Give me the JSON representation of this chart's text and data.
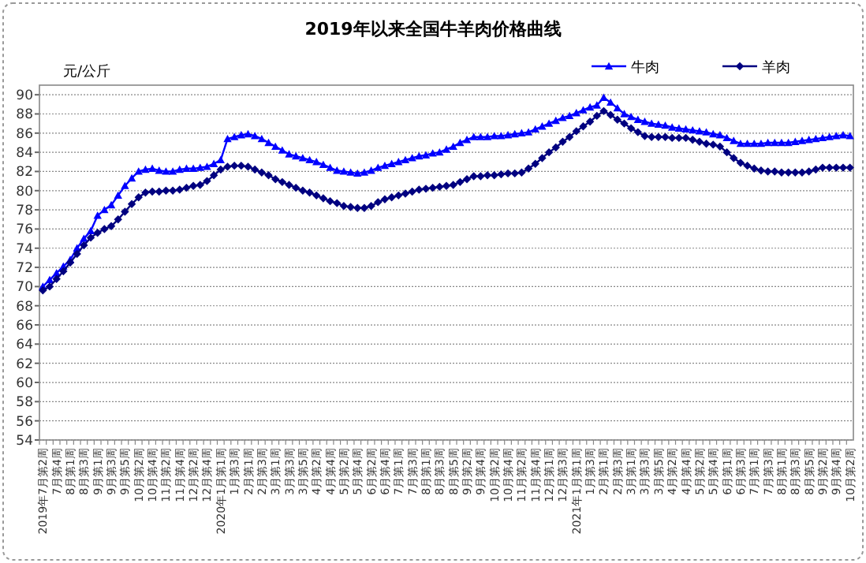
{
  "chart_data": {
    "type": "line",
    "title": "2019年以来全国牛羊肉价格曲线",
    "ylabel": "元/公斤",
    "categories": [
      "2019年7月第2周",
      null,
      "7月第4周",
      null,
      "8月第1周",
      null,
      "8月第3周",
      null,
      "9月第1周",
      null,
      "9月第3周",
      null,
      "9月第5周",
      null,
      "10月第2周",
      null,
      "10月第4周",
      null,
      "11月第2周",
      null,
      "11月第4周",
      null,
      "12月第2周",
      null,
      "12月第4周",
      null,
      "2020年1月第1周",
      null,
      "1月第3周",
      null,
      "2月第1周",
      null,
      "2月第3周",
      null,
      "3月第1周",
      null,
      "3月第3周",
      null,
      "3月第5周",
      null,
      "4月第2周",
      null,
      "4月第4周",
      null,
      "5月第2周",
      null,
      "5月第4周",
      null,
      "6月第2周",
      null,
      "6月第4周",
      null,
      "7月第1周",
      null,
      "7月第3周",
      null,
      "8月第1周",
      null,
      "8月第3周",
      null,
      "8月第5周",
      null,
      "9月第2周",
      null,
      "9月第4周",
      null,
      "10月第2周",
      null,
      "10月第4周",
      null,
      "11月第2周",
      null,
      "11月第4周",
      null,
      "12月第1周",
      null,
      "12月第3周",
      null,
      "2021年1月第1周",
      null,
      "1月第3周",
      null,
      "2月第1周",
      null,
      "2月第3周",
      null,
      "3月第1周",
      null,
      "3月第3周",
      null,
      "3月第5周",
      null,
      "4月第2周",
      null,
      "4月第4周",
      null,
      "5月第2周",
      null,
      "5月第4周",
      null,
      "6月第1周",
      null,
      "6月第3周",
      null,
      "7月第1周",
      null,
      "7月第3周",
      null,
      "8月第1周",
      null,
      "8月第3周",
      null,
      "8月第5周",
      null,
      "9月第2周",
      null,
      "9月第4周",
      null,
      "10月第2周"
    ],
    "series": [
      {
        "name": "牛肉",
        "color": "#0000ff",
        "marker": "triangle",
        "values": [
          70.0,
          70.7,
          71.4,
          72.1,
          72.8,
          74.0,
          75.0,
          75.8,
          77.4,
          78.0,
          78.5,
          79.5,
          80.5,
          81.3,
          82.0,
          82.2,
          82.3,
          82.1,
          82.0,
          82.0,
          82.2,
          82.3,
          82.3,
          82.4,
          82.5,
          82.8,
          83.2,
          85.4,
          85.6,
          85.8,
          85.9,
          85.7,
          85.4,
          85.0,
          84.6,
          84.2,
          83.8,
          83.6,
          83.4,
          83.2,
          83.0,
          82.7,
          82.4,
          82.1,
          82.0,
          81.9,
          81.8,
          81.9,
          82.1,
          82.4,
          82.6,
          82.8,
          83.0,
          83.2,
          83.4,
          83.6,
          83.7,
          83.9,
          84.0,
          84.3,
          84.6,
          85.0,
          85.3,
          85.6,
          85.6,
          85.6,
          85.7,
          85.7,
          85.8,
          85.9,
          86.0,
          86.1,
          86.4,
          86.7,
          87.0,
          87.3,
          87.6,
          87.8,
          88.1,
          88.4,
          88.7,
          88.9,
          89.7,
          89.2,
          88.6,
          88.0,
          87.7,
          87.4,
          87.2,
          87.0,
          86.9,
          86.8,
          86.6,
          86.5,
          86.4,
          86.3,
          86.2,
          86.1,
          85.9,
          85.8,
          85.5,
          85.2,
          84.9,
          84.9,
          84.9,
          84.9,
          85.0,
          85.0,
          85.0,
          85.0,
          85.1,
          85.2,
          85.3,
          85.4,
          85.5,
          85.6,
          85.7,
          85.8,
          85.7
        ]
      },
      {
        "name": "羊肉",
        "color": "#000080",
        "marker": "diamond",
        "values": [
          69.6,
          70.0,
          70.8,
          71.6,
          72.5,
          73.4,
          74.3,
          75.1,
          75.6,
          76.0,
          76.3,
          77.0,
          77.8,
          78.6,
          79.3,
          79.8,
          79.9,
          79.9,
          80.0,
          80.0,
          80.1,
          80.3,
          80.5,
          80.6,
          81.0,
          81.6,
          82.2,
          82.5,
          82.6,
          82.6,
          82.5,
          82.2,
          81.9,
          81.6,
          81.2,
          80.9,
          80.6,
          80.3,
          80.0,
          79.8,
          79.5,
          79.2,
          78.9,
          78.7,
          78.4,
          78.3,
          78.2,
          78.2,
          78.4,
          78.8,
          79.1,
          79.3,
          79.5,
          79.7,
          79.9,
          80.1,
          80.2,
          80.3,
          80.4,
          80.5,
          80.6,
          80.9,
          81.2,
          81.5,
          81.5,
          81.6,
          81.6,
          81.7,
          81.8,
          81.8,
          81.9,
          82.3,
          82.8,
          83.4,
          84.0,
          84.5,
          85.1,
          85.6,
          86.2,
          86.7,
          87.2,
          87.8,
          88.3,
          87.9,
          87.4,
          87.0,
          86.5,
          86.1,
          85.7,
          85.6,
          85.6,
          85.6,
          85.5,
          85.5,
          85.5,
          85.3,
          85.1,
          84.9,
          84.8,
          84.6,
          84.0,
          83.4,
          82.9,
          82.6,
          82.3,
          82.1,
          82.0,
          82.0,
          81.9,
          81.9,
          81.9,
          81.9,
          82.0,
          82.2,
          82.4,
          82.4,
          82.4,
          82.4,
          82.4
        ]
      }
    ],
    "ylim": [
      54,
      91
    ],
    "yticks": [
      54,
      56,
      58,
      60,
      62,
      64,
      66,
      68,
      70,
      72,
      74,
      76,
      78,
      80,
      82,
      84,
      86,
      88,
      90
    ],
    "grid": "y",
    "legend": "top right",
    "line_style": "solid"
  }
}
